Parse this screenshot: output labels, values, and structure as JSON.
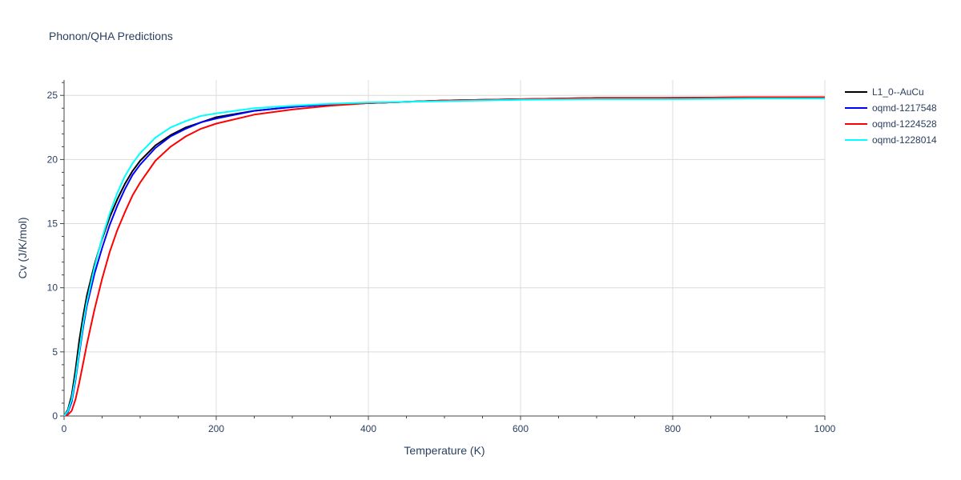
{
  "chart_data": {
    "type": "line",
    "title": "Phonon/QHA Predictions",
    "xlabel": "Temperature (K)",
    "ylabel": "Cv (J/K/mol)",
    "xlim": [
      0,
      1000
    ],
    "ylim": [
      0,
      26.2
    ],
    "xticks": [
      0,
      200,
      400,
      600,
      800,
      1000
    ],
    "yticks": [
      0,
      5,
      10,
      15,
      20,
      25
    ],
    "grid": true,
    "legend_position": "top-right",
    "series": [
      {
        "name": "L1_0--AuCu",
        "color": "#000000",
        "x": [
          0,
          5,
          10,
          15,
          20,
          25,
          30,
          40,
          50,
          60,
          70,
          80,
          90,
          100,
          120,
          140,
          160,
          180,
          200,
          250,
          300,
          350,
          400,
          500,
          600,
          700,
          800,
          900,
          1000
        ],
        "y": [
          0,
          0.5,
          1.6,
          3.6,
          5.9,
          7.8,
          9.4,
          11.8,
          13.8,
          15.5,
          16.9,
          18.1,
          19.1,
          19.9,
          21.1,
          21.9,
          22.5,
          22.9,
          23.3,
          23.8,
          24.1,
          24.3,
          24.4,
          24.6,
          24.7,
          24.8,
          24.8,
          24.85,
          24.85
        ]
      },
      {
        "name": "oqmd-1217548",
        "color": "#0000ff",
        "x": [
          0,
          5,
          10,
          15,
          20,
          25,
          30,
          40,
          50,
          60,
          70,
          80,
          90,
          100,
          120,
          140,
          160,
          180,
          200,
          250,
          300,
          350,
          400,
          500,
          600,
          700,
          800,
          900,
          1000
        ],
        "y": [
          0,
          0.3,
          1.1,
          2.8,
          4.9,
          6.9,
          8.6,
          11.1,
          13.1,
          14.9,
          16.4,
          17.7,
          18.8,
          19.6,
          20.9,
          21.8,
          22.4,
          22.9,
          23.2,
          23.8,
          24.1,
          24.3,
          24.4,
          24.6,
          24.7,
          24.75,
          24.8,
          24.8,
          24.85
        ]
      },
      {
        "name": "oqmd-1224528",
        "color": "#ff0000",
        "x": [
          0,
          5,
          10,
          15,
          20,
          25,
          30,
          40,
          50,
          60,
          70,
          80,
          90,
          100,
          120,
          140,
          160,
          180,
          200,
          250,
          300,
          350,
          400,
          500,
          600,
          700,
          800,
          900,
          1000
        ],
        "y": [
          0,
          0.1,
          0.4,
          1.3,
          2.6,
          4.1,
          5.6,
          8.3,
          10.7,
          12.8,
          14.5,
          15.9,
          17.2,
          18.2,
          19.9,
          21.0,
          21.8,
          22.4,
          22.8,
          23.5,
          23.9,
          24.2,
          24.4,
          24.6,
          24.7,
          24.8,
          24.8,
          24.85,
          24.85
        ]
      },
      {
        "name": "oqmd-1228014",
        "color": "#00ffff",
        "x": [
          0,
          5,
          10,
          15,
          20,
          25,
          30,
          40,
          50,
          60,
          70,
          80,
          90,
          100,
          120,
          140,
          160,
          180,
          200,
          250,
          300,
          350,
          400,
          500,
          600,
          700,
          800,
          900,
          1000
        ],
        "y": [
          0,
          0.4,
          1.3,
          3.0,
          5.1,
          7.2,
          8.9,
          11.6,
          13.9,
          15.8,
          17.4,
          18.7,
          19.7,
          20.5,
          21.7,
          22.5,
          23.0,
          23.4,
          23.6,
          24.0,
          24.2,
          24.35,
          24.45,
          24.55,
          24.65,
          24.7,
          24.7,
          24.75,
          24.75
        ]
      }
    ]
  }
}
